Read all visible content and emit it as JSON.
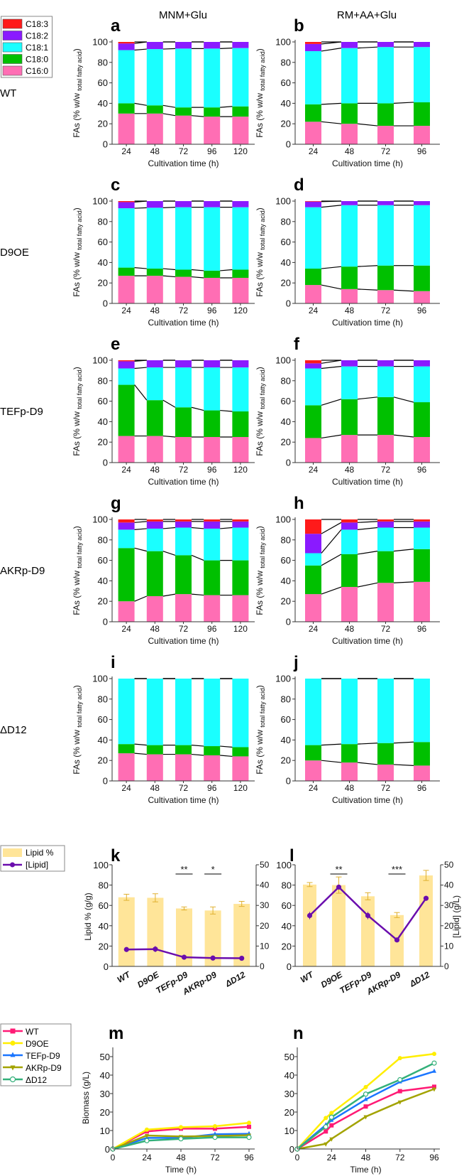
{
  "headers": {
    "col1": "MNM+Glu",
    "col2": "RM+AA+Glu"
  },
  "row_labels": [
    "WT",
    "D9OE",
    "TEFp-D9",
    "AKRp-D9",
    "ΔD12"
  ],
  "fa_legend": [
    {
      "name": "C18:3",
      "color": "#ff1a1a"
    },
    {
      "name": "C18:2",
      "color": "#8a1aff"
    },
    {
      "name": "C18:1",
      "color": "#1affff"
    },
    {
      "name": "C18:0",
      "color": "#00c000"
    },
    {
      "name": "C16:0",
      "color": "#ff6eb4"
    }
  ],
  "fa_axis": {
    "ylabel_main": "FAs (% w/w ",
    "ylabel_sub": "total fatty acid",
    "ylabel_end": ")",
    "xlabel": "Cultivation time (h)",
    "yticks": [
      "0",
      "20",
      "40",
      "60",
      "80",
      "100"
    ]
  },
  "lipid_legend": [
    {
      "name": "Lipid %",
      "color": "#ffe08a"
    },
    {
      "name": "[Lipid]",
      "color": "#6a0dad"
    }
  ],
  "growth_legend": [
    {
      "name": "WT",
      "color": "#ff1a75",
      "marker": "square"
    },
    {
      "name": "D9OE",
      "color": "#ffee00",
      "marker": "circle"
    },
    {
      "name": "TEFp-D9",
      "color": "#1a75ff",
      "marker": "triangle-up"
    },
    {
      "name": "AKRp-D9",
      "color": "#a3a300",
      "marker": "triangle-down"
    },
    {
      "name": "ΔD12",
      "color": "#33b07a",
      "marker": "open-circle"
    }
  ],
  "chart_data": [
    {
      "panel": "a",
      "type": "stacked_bar",
      "medium": "MNM+Glu",
      "strain": "WT",
      "categories": [
        "24",
        "48",
        "72",
        "96",
        "120"
      ],
      "ylim": [
        0,
        100
      ],
      "series": [
        {
          "name": "C16:0",
          "values": [
            30,
            30,
            28,
            27,
            27
          ]
        },
        {
          "name": "C18:0",
          "values": [
            10,
            8,
            8,
            9,
            10
          ]
        },
        {
          "name": "C18:1",
          "values": [
            52,
            55,
            57.5,
            57.5,
            57
          ]
        },
        {
          "name": "C18:2",
          "values": [
            6.5,
            7,
            6.5,
            6.5,
            6
          ]
        },
        {
          "name": "C18:3",
          "values": [
            1.5,
            0,
            0,
            0,
            0
          ]
        }
      ]
    },
    {
      "panel": "b",
      "type": "stacked_bar",
      "medium": "RM+AA+Glu",
      "strain": "WT",
      "categories": [
        "24",
        "48",
        "72",
        "96"
      ],
      "ylim": [
        0,
        100
      ],
      "series": [
        {
          "name": "C16:0",
          "values": [
            22,
            20,
            18,
            18
          ]
        },
        {
          "name": "C18:0",
          "values": [
            17,
            20,
            22,
            23
          ]
        },
        {
          "name": "C18:1",
          "values": [
            52,
            54,
            55,
            54
          ]
        },
        {
          "name": "C18:2",
          "values": [
            7,
            6,
            5,
            5
          ]
        },
        {
          "name": "C18:3",
          "values": [
            2,
            0,
            0,
            0
          ]
        }
      ]
    },
    {
      "panel": "c",
      "type": "stacked_bar",
      "medium": "MNM+Glu",
      "strain": "D9OE",
      "categories": [
        "24",
        "48",
        "72",
        "96",
        "120"
      ],
      "ylim": [
        0,
        100
      ],
      "series": [
        {
          "name": "C16:0",
          "values": [
            27,
            27,
            26,
            25,
            25
          ]
        },
        {
          "name": "C18:0",
          "values": [
            8,
            7,
            7,
            7,
            8
          ]
        },
        {
          "name": "C18:1",
          "values": [
            58,
            59.5,
            61,
            62,
            61
          ]
        },
        {
          "name": "C18:2",
          "values": [
            6,
            6.5,
            6,
            6,
            6
          ]
        },
        {
          "name": "C18:3",
          "values": [
            1,
            0,
            0,
            0,
            0
          ]
        }
      ]
    },
    {
      "panel": "d",
      "type": "stacked_bar",
      "medium": "RM+AA+Glu",
      "strain": "D9OE",
      "categories": [
        "24",
        "48",
        "72",
        "96"
      ],
      "ylim": [
        0,
        100
      ],
      "series": [
        {
          "name": "C16:0",
          "values": [
            18,
            14,
            13,
            12
          ]
        },
        {
          "name": "C18:0",
          "values": [
            16,
            22,
            24,
            25
          ]
        },
        {
          "name": "C18:1",
          "values": [
            60,
            60,
            59,
            59
          ]
        },
        {
          "name": "C18:2",
          "values": [
            5.5,
            4,
            4,
            4
          ]
        },
        {
          "name": "C18:3",
          "values": [
            0.5,
            0,
            0,
            0
          ]
        }
      ]
    },
    {
      "panel": "e",
      "type": "stacked_bar",
      "medium": "MNM+Glu",
      "strain": "TEFp-D9",
      "categories": [
        "24",
        "48",
        "72",
        "96",
        "120"
      ],
      "ylim": [
        0,
        100
      ],
      "series": [
        {
          "name": "C16:0",
          "values": [
            26,
            26,
            25,
            25,
            25
          ]
        },
        {
          "name": "C18:0",
          "values": [
            50,
            35,
            29,
            26,
            25
          ]
        },
        {
          "name": "C18:1",
          "values": [
            16,
            32,
            39,
            42,
            43
          ]
        },
        {
          "name": "C18:2",
          "values": [
            7,
            7,
            7,
            7,
            7
          ]
        },
        {
          "name": "C18:3",
          "values": [
            1,
            0,
            0,
            0,
            0
          ]
        }
      ]
    },
    {
      "panel": "f",
      "type": "stacked_bar",
      "medium": "RM+AA+Glu",
      "strain": "TEFp-D9",
      "categories": [
        "24",
        "48",
        "72",
        "96"
      ],
      "ylim": [
        0,
        100
      ],
      "series": [
        {
          "name": "C16:0",
          "values": [
            24,
            27,
            27,
            25
          ]
        },
        {
          "name": "C18:0",
          "values": [
            32,
            35,
            37,
            34
          ]
        },
        {
          "name": "C18:1",
          "values": [
            36,
            32,
            30,
            35
          ]
        },
        {
          "name": "C18:2",
          "values": [
            5,
            6,
            6,
            6
          ]
        },
        {
          "name": "C18:3",
          "values": [
            3,
            0,
            0,
            0
          ]
        }
      ]
    },
    {
      "panel": "g",
      "type": "stacked_bar",
      "medium": "MNM+Glu",
      "strain": "AKRp-D9",
      "categories": [
        "24",
        "48",
        "72",
        "96",
        "120"
      ],
      "ylim": [
        0,
        100
      ],
      "series": [
        {
          "name": "C16:0",
          "values": [
            20,
            25,
            27,
            26,
            26
          ]
        },
        {
          "name": "C18:0",
          "values": [
            52,
            44,
            38,
            34,
            34
          ]
        },
        {
          "name": "C18:1",
          "values": [
            18,
            22,
            27,
            31,
            32
          ]
        },
        {
          "name": "C18:2",
          "values": [
            7,
            7,
            6,
            7,
            6
          ]
        },
        {
          "name": "C18:3",
          "values": [
            3,
            2,
            2,
            2,
            2
          ]
        }
      ]
    },
    {
      "panel": "h",
      "type": "stacked_bar",
      "medium": "RM+AA+Glu",
      "strain": "AKRp-D9",
      "categories": [
        "24",
        "48",
        "72",
        "96"
      ],
      "ylim": [
        0,
        100
      ],
      "series": [
        {
          "name": "C16:0",
          "values": [
            27,
            34,
            38,
            39
          ]
        },
        {
          "name": "C18:0",
          "values": [
            28,
            32,
            31,
            32
          ]
        },
        {
          "name": "C18:1",
          "values": [
            12,
            24,
            23,
            21
          ]
        },
        {
          "name": "C18:2",
          "values": [
            19,
            7,
            6,
            6
          ]
        },
        {
          "name": "C18:3",
          "values": [
            14,
            3,
            2,
            2
          ]
        }
      ]
    },
    {
      "panel": "i",
      "type": "stacked_bar",
      "medium": "MNM+Glu",
      "strain": "ΔD12",
      "categories": [
        "24",
        "48",
        "72",
        "96",
        "120"
      ],
      "ylim": [
        0,
        100
      ],
      "series": [
        {
          "name": "C16:0",
          "values": [
            27,
            26,
            26,
            25,
            24
          ]
        },
        {
          "name": "C18:0",
          "values": [
            9,
            9,
            9,
            9,
            9
          ]
        },
        {
          "name": "C18:1",
          "values": [
            64,
            65,
            65,
            66,
            67
          ]
        },
        {
          "name": "C18:2",
          "values": [
            0,
            0,
            0,
            0,
            0
          ]
        },
        {
          "name": "C18:3",
          "values": [
            0,
            0,
            0,
            0,
            0
          ]
        }
      ]
    },
    {
      "panel": "j",
      "type": "stacked_bar",
      "medium": "RM+AA+Glu",
      "strain": "ΔD12",
      "categories": [
        "24",
        "48",
        "72",
        "96"
      ],
      "ylim": [
        0,
        100
      ],
      "series": [
        {
          "name": "C16:0",
          "values": [
            20,
            18,
            16,
            15
          ]
        },
        {
          "name": "C18:0",
          "values": [
            15,
            18,
            21,
            23
          ]
        },
        {
          "name": "C18:1",
          "values": [
            65,
            64,
            63,
            62
          ]
        },
        {
          "name": "C18:2",
          "values": [
            0,
            0,
            0,
            0
          ]
        },
        {
          "name": "C18:3",
          "values": [
            0,
            0,
            0,
            0
          ]
        }
      ]
    },
    {
      "panel": "k",
      "type": "bar+line",
      "categories": [
        "WT",
        "D9OE",
        "TEFp-D9",
        "AKRp-D9",
        "ΔD12"
      ],
      "ylabel": "Lipid % (g/g)",
      "ylim": [
        0,
        100
      ],
      "yticks": [
        "0",
        "20",
        "40",
        "60",
        "80",
        "100"
      ],
      "y2ticks": [
        "0",
        "10",
        "20",
        "30",
        "40",
        "50"
      ],
      "y2lim": [
        0,
        50
      ],
      "bars": {
        "name": "Lipid %",
        "values": [
          68,
          67.5,
          57,
          55,
          61.5
        ],
        "errors": [
          3,
          4,
          1.5,
          3.5,
          2.5
        ]
      },
      "line": {
        "name": "[Lipid]",
        "values": [
          8.3,
          8.5,
          4.5,
          4.1,
          4.0
        ],
        "errors": [
          0.8,
          1.5,
          0.6,
          0.4,
          0.4
        ]
      },
      "significance": [
        {
          "category": "TEFp-D9",
          "label": "**"
        },
        {
          "category": "AKRp-D9",
          "label": "*"
        }
      ]
    },
    {
      "panel": "l",
      "type": "bar+line",
      "categories": [
        "WT",
        "D9OE",
        "TEFp-D9",
        "AKRp-D9",
        "ΔD12"
      ],
      "y2label": "[Lipid] (g/L)",
      "ylim": [
        0,
        100
      ],
      "yticks": [
        "0",
        "20",
        "40",
        "60",
        "80",
        "100"
      ],
      "y2ticks": [
        "0",
        "10",
        "20",
        "30",
        "40",
        "50"
      ],
      "y2lim": [
        0,
        50
      ],
      "bars": {
        "name": "Lipid %",
        "values": [
          80.5,
          80,
          69,
          50.5,
          89.5
        ],
        "errors": [
          2,
          8,
          3.5,
          2.5,
          5
        ]
      },
      "line": {
        "name": "[Lipid]",
        "values": [
          25,
          39,
          25,
          13,
          33.5
        ],
        "errors": [
          1.8,
          1,
          1.8,
          0.5,
          1.2
        ]
      },
      "significance": [
        {
          "category": "D9OE",
          "label": "**"
        },
        {
          "category": "AKRp-D9",
          "label": "***"
        }
      ]
    },
    {
      "panel": "m",
      "type": "line",
      "xlabel": "Time (h)",
      "ylabel": "Biomass (g/L)",
      "xlim": [
        0,
        96
      ],
      "ylim": [
        0,
        55
      ],
      "xticks": [
        "0",
        "24",
        "48",
        "72",
        "96"
      ],
      "yticks": [
        "0",
        "10",
        "20",
        "30",
        "40",
        "50"
      ],
      "x": [
        0,
        24,
        48,
        72,
        96
      ],
      "series": [
        {
          "name": "WT",
          "values": [
            0,
            9.5,
            11,
            11,
            12
          ]
        },
        {
          "name": "D9OE",
          "values": [
            0,
            10.5,
            11.8,
            12.3,
            14.2
          ]
        },
        {
          "name": "TEFp-D9",
          "values": [
            0,
            6,
            6,
            8,
            8.2
          ]
        },
        {
          "name": "AKRp-D9",
          "values": [
            0,
            7.3,
            6.8,
            7,
            7.5
          ]
        },
        {
          "name": "ΔD12",
          "values": [
            0,
            4.5,
            5.5,
            6.3,
            6.3
          ]
        }
      ]
    },
    {
      "panel": "n",
      "type": "line",
      "xlabel": "Time (h)",
      "xlim": [
        0,
        96
      ],
      "ylim": [
        0,
        55
      ],
      "xticks": [
        "0",
        "24",
        "48",
        "72",
        "96"
      ],
      "yticks": [
        "0",
        "10",
        "20",
        "30",
        "40",
        "50"
      ],
      "x": [
        0,
        20,
        24,
        48,
        72,
        96
      ],
      "series": [
        {
          "name": "WT",
          "values": [
            0,
            9.5,
            12.8,
            23,
            31.3,
            33.7
          ]
        },
        {
          "name": "D9OE",
          "values": [
            0,
            16.8,
            19.5,
            33.5,
            49.2,
            51.5
          ]
        },
        {
          "name": "TEFp-D9",
          "values": [
            0,
            13,
            15.5,
            26.8,
            36.3,
            42
          ]
        },
        {
          "name": "AKRp-D9",
          "values": [
            0,
            2.8,
            5.5,
            17.5,
            25.5,
            32.5
          ]
        },
        {
          "name": "ΔD12",
          "values": [
            0,
            12,
            17.2,
            29.7,
            37.5,
            46.5
          ]
        }
      ]
    }
  ]
}
